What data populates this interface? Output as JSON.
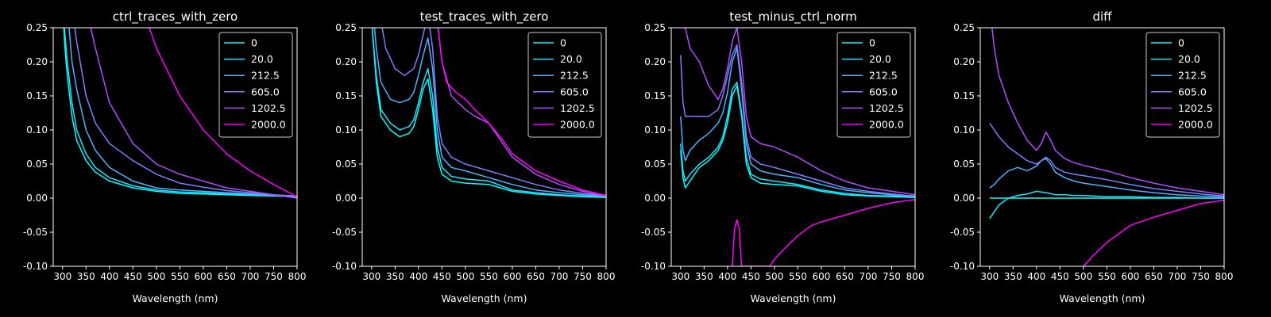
{
  "chart_data": [
    {
      "type": "line",
      "title": "ctrl_traces_with_zero",
      "xlabel": "Wavelength (nm)",
      "ylabel": "",
      "xlim": [
        280,
        800
      ],
      "ylim": [
        -0.1,
        0.25
      ],
      "xticks": [
        300,
        350,
        400,
        450,
        500,
        550,
        600,
        650,
        700,
        750,
        800
      ],
      "yticks": [
        -0.1,
        -0.05,
        0.0,
        0.05,
        0.1,
        0.15,
        0.2,
        0.25
      ],
      "legend_position": "top-right",
      "series": [
        {
          "name": "0",
          "color": "#00ffff",
          "x": [
            300,
            305,
            310,
            320,
            330,
            350,
            370,
            400,
            450,
            500,
            550,
            600,
            650,
            700,
            750,
            800
          ],
          "y": [
            0.28,
            0.22,
            0.18,
            0.12,
            0.085,
            0.055,
            0.038,
            0.025,
            0.015,
            0.01,
            0.007,
            0.006,
            0.005,
            0.004,
            0.003,
            0.002
          ]
        },
        {
          "name": "20.0",
          "color": "#19e5ff",
          "x": [
            300,
            305,
            310,
            320,
            330,
            350,
            370,
            400,
            450,
            500,
            550,
            600,
            650,
            700,
            750,
            800
          ],
          "y": [
            0.28,
            0.24,
            0.2,
            0.14,
            0.1,
            0.065,
            0.045,
            0.03,
            0.018,
            0.012,
            0.009,
            0.008,
            0.006,
            0.005,
            0.004,
            0.003
          ]
        },
        {
          "name": "212.5",
          "color": "#4cb2ff",
          "x": [
            310,
            320,
            330,
            350,
            370,
            400,
            450,
            500,
            550,
            600,
            650,
            700,
            750,
            800
          ],
          "y": [
            0.28,
            0.2,
            0.16,
            0.1,
            0.07,
            0.045,
            0.025,
            0.015,
            0.012,
            0.01,
            0.008,
            0.006,
            0.004,
            0.003
          ]
        },
        {
          "name": "605.0",
          "color": "#7f7fff",
          "x": [
            320,
            330,
            350,
            370,
            400,
            450,
            500,
            550,
            600,
            650,
            700,
            750,
            800
          ],
          "y": [
            0.28,
            0.23,
            0.15,
            0.11,
            0.08,
            0.055,
            0.035,
            0.022,
            0.016,
            0.011,
            0.008,
            0.005,
            0.003
          ]
        },
        {
          "name": "1202.5",
          "color": "#b24cff",
          "x": [
            350,
            370,
            400,
            450,
            500,
            550,
            600,
            650,
            700,
            750,
            800
          ],
          "y": [
            0.28,
            0.22,
            0.14,
            0.08,
            0.05,
            0.035,
            0.025,
            0.015,
            0.01,
            0.005,
            0.0
          ]
        },
        {
          "name": "2000.0",
          "color": "#ff00ff",
          "x": [
            480,
            500,
            550,
            600,
            650,
            700,
            750,
            800
          ],
          "y": [
            0.26,
            0.22,
            0.15,
            0.1,
            0.065,
            0.04,
            0.02,
            0.002
          ]
        }
      ]
    },
    {
      "type": "line",
      "title": "test_traces_with_zero",
      "xlabel": "Wavelength (nm)",
      "ylabel": "",
      "xlim": [
        280,
        800
      ],
      "ylim": [
        -0.1,
        0.25
      ],
      "xticks": [
        300,
        350,
        400,
        450,
        500,
        550,
        600,
        650,
        700,
        750,
        800
      ],
      "yticks": [
        -0.1,
        -0.05,
        0.0,
        0.05,
        0.1,
        0.15,
        0.2,
        0.25
      ],
      "legend_position": "top-right",
      "series": [
        {
          "name": "0",
          "color": "#00ffff",
          "x": [
            300,
            310,
            320,
            340,
            360,
            380,
            390,
            400,
            410,
            420,
            430,
            440,
            450,
            470,
            500,
            550,
            600,
            650,
            700,
            750,
            800
          ],
          "y": [
            0.26,
            0.17,
            0.12,
            0.1,
            0.09,
            0.095,
            0.105,
            0.13,
            0.16,
            0.175,
            0.13,
            0.06,
            0.035,
            0.025,
            0.022,
            0.02,
            0.01,
            0.006,
            0.004,
            0.002,
            0.001
          ]
        },
        {
          "name": "20.0",
          "color": "#19e5ff",
          "x": [
            300,
            310,
            320,
            340,
            360,
            380,
            390,
            400,
            410,
            420,
            430,
            440,
            450,
            470,
            500,
            550,
            600,
            650,
            700,
            750,
            800
          ],
          "y": [
            0.26,
            0.18,
            0.13,
            0.11,
            0.1,
            0.105,
            0.115,
            0.14,
            0.17,
            0.19,
            0.15,
            0.075,
            0.045,
            0.032,
            0.028,
            0.025,
            0.012,
            0.008,
            0.005,
            0.003,
            0.002
          ]
        },
        {
          "name": "212.5",
          "color": "#4cb2ff",
          "x": [
            305,
            310,
            320,
            340,
            360,
            380,
            390,
            400,
            410,
            420,
            430,
            440,
            450,
            470,
            500,
            550,
            600,
            650,
            700,
            750,
            800
          ],
          "y": [
            0.26,
            0.22,
            0.17,
            0.145,
            0.14,
            0.145,
            0.155,
            0.18,
            0.21,
            0.235,
            0.19,
            0.1,
            0.06,
            0.045,
            0.04,
            0.03,
            0.02,
            0.012,
            0.008,
            0.005,
            0.003
          ]
        },
        {
          "name": "605.0",
          "color": "#7f7fff",
          "x": [
            320,
            330,
            350,
            370,
            390,
            400,
            410,
            420,
            430,
            440,
            450,
            470,
            500,
            550,
            600,
            650,
            700,
            750,
            800
          ],
          "y": [
            0.26,
            0.22,
            0.19,
            0.18,
            0.19,
            0.21,
            0.24,
            0.27,
            0.22,
            0.12,
            0.08,
            0.06,
            0.05,
            0.04,
            0.03,
            0.02,
            0.012,
            0.007,
            0.003
          ]
        },
        {
          "name": "1202.5",
          "color": "#b24cff",
          "x": [
            440,
            450,
            470,
            500,
            520,
            550,
            580,
            600,
            650,
            700,
            750,
            800
          ],
          "y": [
            0.26,
            0.2,
            0.15,
            0.13,
            0.12,
            0.11,
            0.08,
            0.06,
            0.035,
            0.02,
            0.01,
            0.003
          ]
        },
        {
          "name": "2000.0",
          "color": "#ff00ff",
          "x": [
            440,
            450,
            460,
            480,
            500,
            520,
            550,
            580,
            600,
            650,
            700,
            750,
            800
          ],
          "y": [
            0.26,
            0.2,
            0.17,
            0.155,
            0.145,
            0.13,
            0.11,
            0.085,
            0.065,
            0.04,
            0.025,
            0.012,
            0.004
          ]
        }
      ]
    },
    {
      "type": "line",
      "title": "test_minus_ctrl_norm",
      "xlabel": "Wavelength (nm)",
      "ylabel": "",
      "xlim": [
        280,
        800
      ],
      "ylim": [
        -0.1,
        0.25
      ],
      "xticks": [
        300,
        350,
        400,
        450,
        500,
        550,
        600,
        650,
        700,
        750,
        800
      ],
      "yticks": [
        -0.1,
        -0.05,
        0.0,
        0.05,
        0.1,
        0.15,
        0.2,
        0.25
      ],
      "legend_position": "top-right",
      "series": [
        {
          "name": "0",
          "color": "#00ffff",
          "x": [
            300,
            305,
            310,
            320,
            340,
            360,
            380,
            390,
            400,
            410,
            420,
            430,
            440,
            450,
            470,
            500,
            550,
            600,
            650,
            700,
            750,
            800
          ],
          "y": [
            0.07,
            0.03,
            0.015,
            0.025,
            0.045,
            0.055,
            0.07,
            0.085,
            0.11,
            0.15,
            0.165,
            0.12,
            0.05,
            0.03,
            0.022,
            0.02,
            0.018,
            0.01,
            0.005,
            0.003,
            0.002,
            0.001
          ]
        },
        {
          "name": "20.0",
          "color": "#19e5ff",
          "x": [
            300,
            305,
            310,
            320,
            340,
            360,
            380,
            390,
            400,
            410,
            420,
            430,
            440,
            450,
            470,
            500,
            550,
            600,
            650,
            700,
            750,
            800
          ],
          "y": [
            0.08,
            0.04,
            0.025,
            0.035,
            0.05,
            0.06,
            0.075,
            0.09,
            0.12,
            0.16,
            0.17,
            0.125,
            0.06,
            0.035,
            0.028,
            0.025,
            0.02,
            0.012,
            0.007,
            0.004,
            0.003,
            0.002
          ]
        },
        {
          "name": "212.5",
          "color": "#4cb2ff",
          "x": [
            300,
            305,
            310,
            320,
            340,
            360,
            380,
            390,
            400,
            410,
            420,
            430,
            440,
            450,
            470,
            500,
            550,
            600,
            650,
            700,
            750,
            800
          ],
          "y": [
            0.12,
            0.07,
            0.055,
            0.07,
            0.085,
            0.095,
            0.11,
            0.125,
            0.155,
            0.2,
            0.22,
            0.16,
            0.08,
            0.05,
            0.04,
            0.035,
            0.03,
            0.02,
            0.012,
            0.008,
            0.005,
            0.003
          ]
        },
        {
          "name": "605.0",
          "color": "#7f7fff",
          "x": [
            300,
            305,
            310,
            320,
            340,
            360,
            380,
            390,
            400,
            410,
            420,
            430,
            440,
            450,
            470,
            500,
            550,
            600,
            650,
            700,
            750,
            800
          ],
          "y": [
            0.21,
            0.14,
            0.12,
            0.12,
            0.12,
            0.12,
            0.13,
            0.15,
            0.18,
            0.21,
            0.225,
            0.17,
            0.09,
            0.06,
            0.05,
            0.045,
            0.035,
            0.025,
            0.015,
            0.01,
            0.006,
            0.003
          ]
        },
        {
          "name": "1202.5",
          "color": "#b24cff",
          "x": [
            310,
            320,
            340,
            360,
            380,
            390,
            400,
            410,
            420,
            430,
            440,
            450,
            470,
            500,
            550,
            600,
            650,
            700,
            750,
            800
          ],
          "y": [
            0.25,
            0.22,
            0.2,
            0.165,
            0.145,
            0.16,
            0.19,
            0.23,
            0.25,
            0.2,
            0.12,
            0.09,
            0.08,
            0.075,
            0.06,
            0.04,
            0.025,
            0.015,
            0.01,
            0.005
          ]
        },
        {
          "name": "2000.0",
          "color": "#ff00ff",
          "x": [
            410,
            415,
            420,
            425,
            430,
            490,
            500,
            520,
            550,
            580,
            600,
            650,
            700,
            750,
            800
          ],
          "y": [
            -0.1,
            -0.045,
            -0.032,
            -0.045,
            -0.1,
            -0.1,
            -0.09,
            -0.075,
            -0.055,
            -0.04,
            -0.035,
            -0.025,
            -0.015,
            -0.007,
            -0.002
          ]
        }
      ]
    },
    {
      "type": "line",
      "title": "diff",
      "xlabel": "Wavelength (nm)",
      "ylabel": "",
      "xlim": [
        280,
        800
      ],
      "ylim": [
        -0.1,
        0.25
      ],
      "xticks": [
        300,
        350,
        400,
        450,
        500,
        550,
        600,
        650,
        700,
        750,
        800
      ],
      "yticks": [
        -0.1,
        -0.05,
        0.0,
        0.05,
        0.1,
        0.15,
        0.2,
        0.25
      ],
      "legend_position": "top-right",
      "series": [
        {
          "name": "0",
          "color": "#00ffff",
          "x": [
            300,
            800
          ],
          "y": [
            0.0,
            0.0
          ]
        },
        {
          "name": "20.0",
          "color": "#19e5ff",
          "x": [
            300,
            310,
            320,
            340,
            360,
            380,
            400,
            420,
            440,
            460,
            480,
            500,
            520,
            550,
            600,
            650,
            700,
            750,
            800
          ],
          "y": [
            -0.03,
            -0.02,
            -0.01,
            0.0,
            0.004,
            0.006,
            0.01,
            0.008,
            0.005,
            0.005,
            0.004,
            0.004,
            0.003,
            0.002,
            0.002,
            0.001,
            0.001,
            0.0,
            0.0
          ]
        },
        {
          "name": "212.5",
          "color": "#4cb2ff",
          "x": [
            300,
            310,
            320,
            340,
            360,
            380,
            400,
            410,
            420,
            430,
            440,
            460,
            480,
            500,
            550,
            600,
            650,
            700,
            750,
            800
          ],
          "y": [
            0.015,
            0.02,
            0.028,
            0.04,
            0.045,
            0.04,
            0.047,
            0.055,
            0.058,
            0.05,
            0.038,
            0.03,
            0.025,
            0.022,
            0.017,
            0.012,
            0.008,
            0.005,
            0.003,
            0.002
          ]
        },
        {
          "name": "605.0",
          "color": "#7f7fff",
          "x": [
            300,
            310,
            320,
            340,
            360,
            380,
            400,
            410,
            420,
            430,
            440,
            460,
            480,
            500,
            550,
            600,
            650,
            700,
            750,
            800
          ],
          "y": [
            0.11,
            0.1,
            0.09,
            0.075,
            0.065,
            0.055,
            0.05,
            0.055,
            0.06,
            0.055,
            0.045,
            0.038,
            0.035,
            0.033,
            0.027,
            0.02,
            0.014,
            0.01,
            0.006,
            0.003
          ]
        },
        {
          "name": "1202.5",
          "color": "#b24cff",
          "x": [
            305,
            310,
            320,
            340,
            360,
            380,
            400,
            410,
            420,
            430,
            440,
            460,
            480,
            500,
            550,
            600,
            650,
            700,
            750,
            800
          ],
          "y": [
            0.25,
            0.22,
            0.18,
            0.14,
            0.11,
            0.085,
            0.07,
            0.08,
            0.097,
            0.085,
            0.07,
            0.058,
            0.052,
            0.048,
            0.04,
            0.03,
            0.022,
            0.015,
            0.01,
            0.005
          ]
        },
        {
          "name": "2000.0",
          "color": "#ff00ff",
          "x": [
            500,
            520,
            550,
            580,
            600,
            650,
            700,
            750,
            800
          ],
          "y": [
            -0.1,
            -0.085,
            -0.065,
            -0.05,
            -0.04,
            -0.028,
            -0.018,
            -0.008,
            -0.003
          ]
        }
      ]
    }
  ]
}
